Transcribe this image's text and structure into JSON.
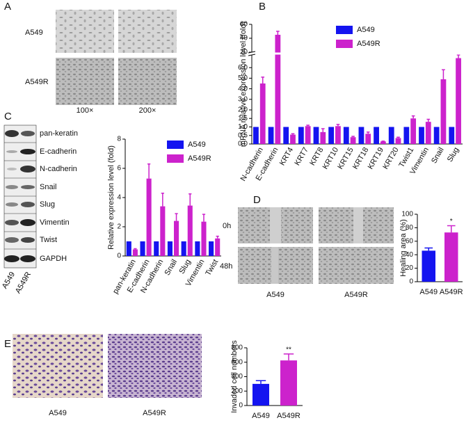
{
  "figure": {
    "panel_letters": [
      "A",
      "B",
      "C",
      "D",
      "E"
    ],
    "panel_a": {
      "row_labels": [
        "A549",
        "A549R"
      ],
      "column_labels": [
        "100×",
        "200×"
      ]
    },
    "panel_c": {
      "blot_labels": [
        "pan-keratin",
        "E-cadherin",
        "N-cadherin",
        "Snail",
        "Slug",
        "Vimentin",
        "Twist",
        "GAPDH"
      ],
      "lane_labels": [
        "A549",
        "A549R"
      ]
    },
    "panel_d": {
      "row_labels": [
        "0h",
        "48h"
      ],
      "column_labels": [
        "A549",
        "A549R"
      ]
    },
    "panel_e": {
      "column_labels": [
        "A549",
        "A549R"
      ]
    }
  },
  "chart_data": [
    {
      "type": "bar",
      "y_label": "mRNA relative expression level (fold)",
      "categories": [
        "N-cadherin",
        "E-cadherin",
        "KRT4",
        "KRT7",
        "KRT8",
        "KRT10",
        "KRT15",
        "KRT18",
        "KRT19",
        "KRT20",
        "Twist1",
        "Vimentin",
        "Snail",
        "Slug"
      ],
      "series": [
        {
          "name": "A549",
          "color": "#1414f0",
          "values": [
            1,
            1,
            1,
            1,
            1,
            1,
            1,
            1,
            1,
            1,
            1,
            1,
            1,
            1
          ]
        },
        {
          "name": "A549R",
          "color": "#cc22cc",
          "values": [
            4.5,
            45,
            0.55,
            1.05,
            0.7,
            1.05,
            0.4,
            0.6,
            0.15,
            0.35,
            1.5,
            1.3,
            4.9,
            6.9
          ],
          "errors": [
            0.6,
            5,
            0.05,
            0.05,
            0.2,
            0.1,
            0.05,
            0.1,
            0.02,
            0.05,
            0.15,
            0.15,
            0.9,
            0.3
          ]
        }
      ],
      "y_segments": [
        [
          0,
          2
        ],
        [
          2,
          7.2
        ],
        [
          20,
          60
        ]
      ],
      "yticks": [
        {
          "value": 0,
          "label": "0.0"
        },
        0.5,
        {
          "value": 1,
          "label": "1.0"
        },
        1.5,
        {
          "value": 2,
          "label": "2.0"
        },
        {
          "value": 3,
          "label": "3.0"
        },
        {
          "value": 4,
          "label": "4.0"
        },
        {
          "value": 5,
          "label": "5.0"
        },
        {
          "value": 6,
          "label": "6.0"
        },
        20,
        40,
        60
      ],
      "legend": "top-right"
    },
    {
      "type": "bar",
      "y_label": "Relative expression level (fold)",
      "categories": [
        "pan-keratin",
        "E-cadherin",
        "N-cadherin",
        "Snail",
        "Slug",
        "Vimentin",
        "Twist"
      ],
      "series": [
        {
          "name": "A549",
          "color": "#1414f0",
          "values": [
            1,
            1,
            1,
            1,
            1,
            1,
            1
          ]
        },
        {
          "name": "A549R",
          "color": "#cc22cc",
          "values": [
            0.45,
            5.3,
            3.4,
            2.4,
            3.45,
            2.35,
            1.2
          ],
          "errors": [
            0.05,
            1.0,
            0.9,
            0.5,
            0.8,
            0.5,
            0.15
          ]
        }
      ],
      "ylim": [
        0,
        8
      ],
      "yticks": [
        0,
        2,
        4,
        6,
        8
      ],
      "legend": "top-right"
    },
    {
      "type": "bar",
      "y_label": "Healing area (%)",
      "categories": [
        "A549",
        "A549R"
      ],
      "values": [
        46,
        73
      ],
      "errors": [
        4,
        10
      ],
      "colors": [
        "#1414f0",
        "#cc22cc"
      ],
      "significance": [
        null,
        "*"
      ],
      "ylim": [
        0,
        100
      ],
      "yticks": [
        0,
        20,
        40,
        60,
        80,
        100
      ]
    },
    {
      "type": "bar",
      "y_label": "Invaded cell numbers",
      "categories": [
        "A549",
        "A549R"
      ],
      "values": [
        300,
        625
      ],
      "errors": [
        45,
        90
      ],
      "colors": [
        "#1414f0",
        "#cc22cc"
      ],
      "significance": [
        null,
        "**"
      ],
      "ylim": [
        0,
        800
      ],
      "yticks": [
        0,
        200,
        400,
        600,
        800
      ]
    }
  ]
}
